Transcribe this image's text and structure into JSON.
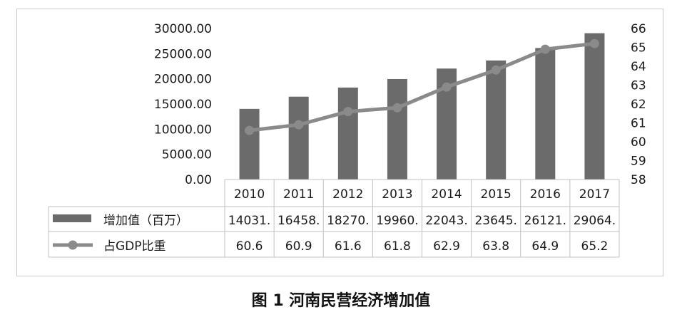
{
  "caption": "图 1    河南民营经济增加值",
  "chart_data": {
    "type": "bar+line",
    "categories": [
      "2010",
      "2011",
      "2012",
      "2013",
      "2014",
      "2015",
      "2016",
      "2017"
    ],
    "series": [
      {
        "name": "增加值（百万）",
        "type": "bar",
        "axis": "left",
        "values": [
          14031,
          16458,
          18270,
          19960,
          22043,
          23645,
          26121,
          29064
        ],
        "table_labels": [
          "14031.",
          "16458.",
          "18270.",
          "19960.",
          "22043.",
          "23645.",
          "26121.",
          "29064."
        ]
      },
      {
        "name": "占GDP比重",
        "type": "line",
        "axis": "right",
        "values": [
          60.6,
          60.9,
          61.6,
          61.8,
          62.9,
          63.8,
          64.9,
          65.2
        ],
        "table_labels": [
          "60.6",
          "60.9",
          "61.6",
          "61.8",
          "62.9",
          "63.8",
          "64.9",
          "65.2"
        ]
      }
    ],
    "y_left": {
      "lim": [
        0,
        30000
      ],
      "ticks": [
        "0.00",
        "5000.00",
        "10000.00",
        "15000.00",
        "20000.00",
        "25000.00",
        "30000.00"
      ],
      "tick_values": [
        0,
        5000,
        10000,
        15000,
        20000,
        25000,
        30000
      ]
    },
    "y_right": {
      "lim": [
        58,
        66
      ],
      "ticks": [
        "58",
        "59",
        "60",
        "61",
        "62",
        "63",
        "64",
        "65",
        "66"
      ],
      "tick_values": [
        58,
        59,
        60,
        61,
        62,
        63,
        64,
        65,
        66
      ]
    },
    "grid": false,
    "legend": "data-table",
    "colors": {
      "bar": "#6b6b6b",
      "line": "#8a8a8a",
      "border": "#c8c8c8"
    }
  }
}
